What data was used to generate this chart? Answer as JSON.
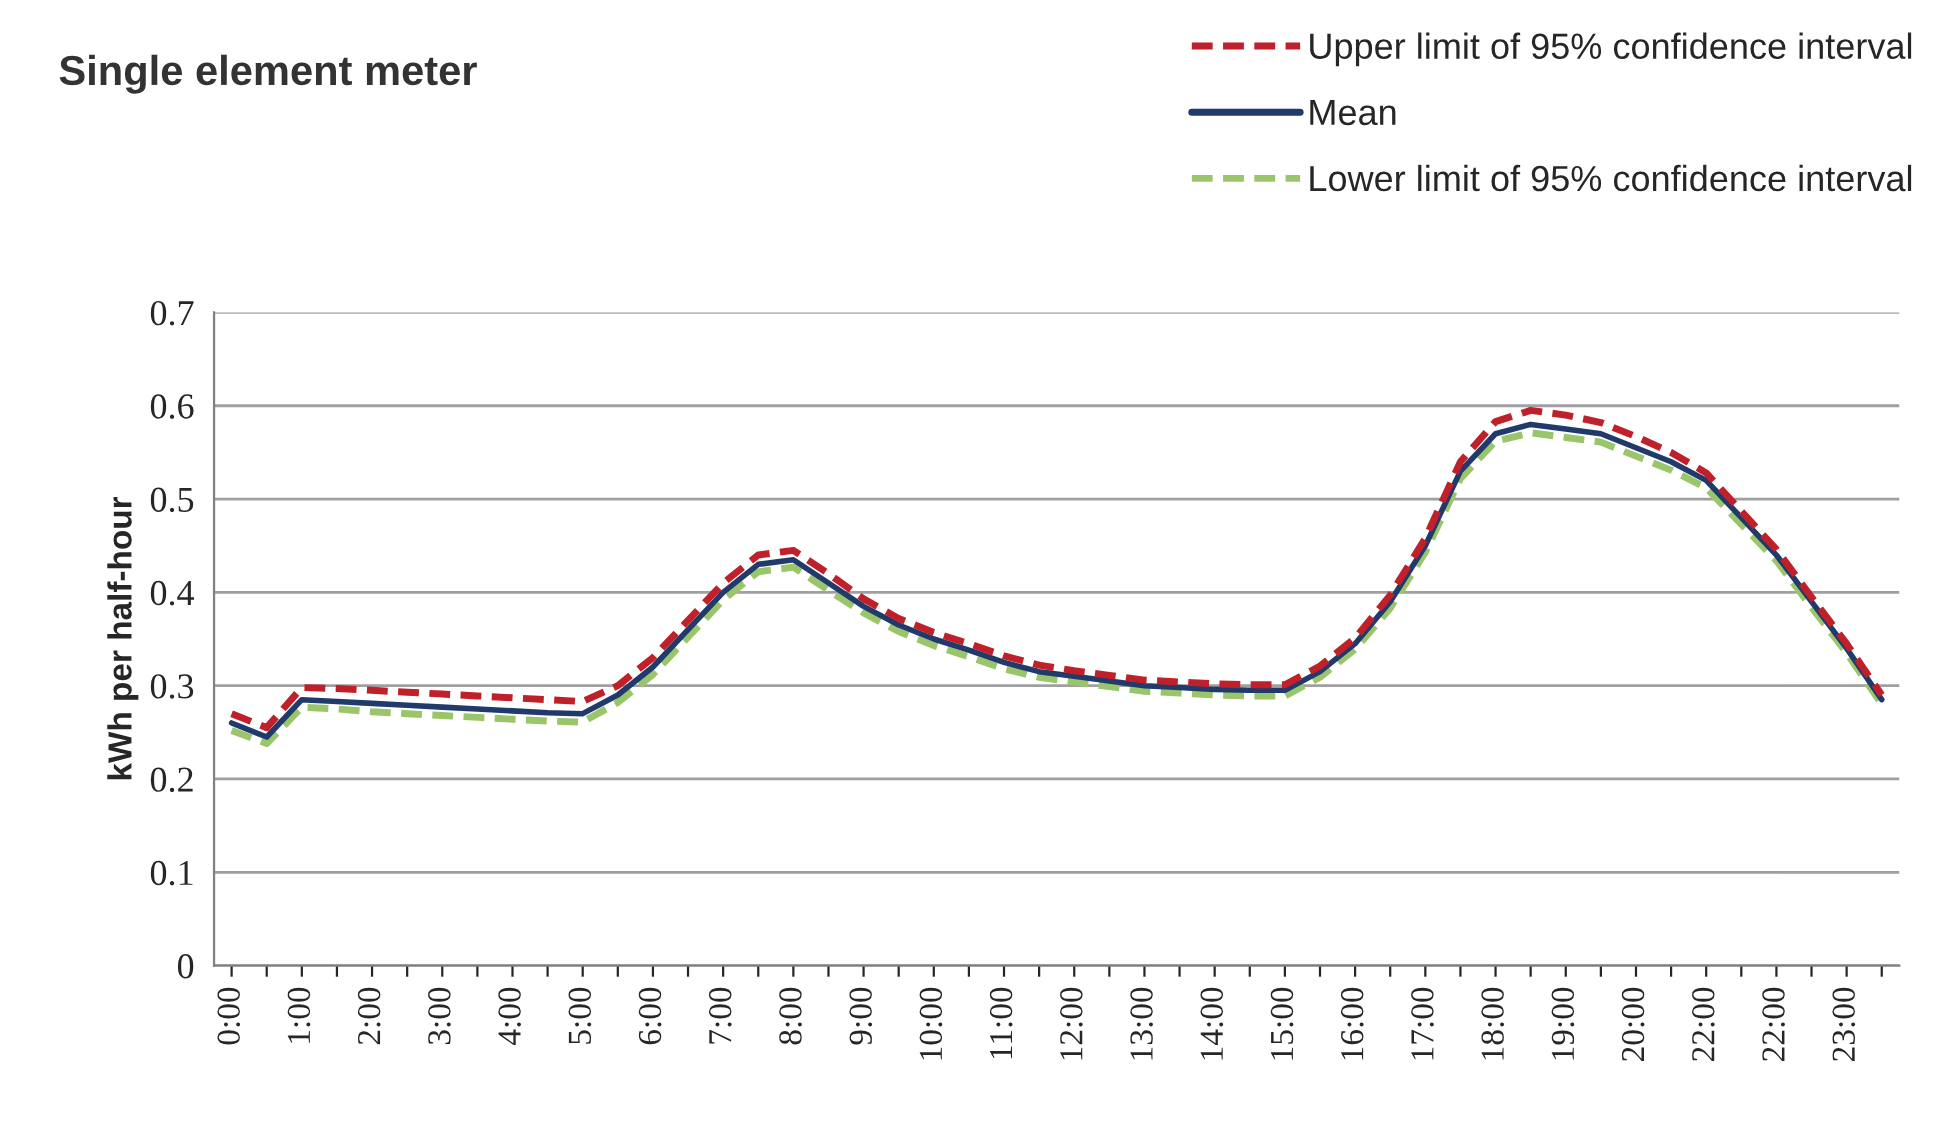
{
  "chart_data": {
    "type": "line",
    "title": "Single element meter",
    "ylabel": "kWh per half-hour",
    "categories": [
      "0:00",
      null,
      "1:00",
      null,
      "2:00",
      null,
      "3:00",
      null,
      "4:00",
      null,
      "5:00",
      null,
      "6:00",
      null,
      "7:00",
      null,
      "8:00",
      null,
      "9:00",
      null,
      "10:00",
      null,
      "11:00",
      null,
      "12:00",
      null,
      "13:00",
      null,
      "14:00",
      null,
      "15:00",
      null,
      "16:00",
      null,
      "17:00",
      null,
      "18:00",
      null,
      "19:00",
      null,
      "20:00",
      null,
      "22:00",
      null,
      "22:00",
      null,
      "23:00",
      null
    ],
    "series": [
      {
        "name": "Upper limit of 95% confidence interval",
        "color": "#c0202a",
        "line_style": "dashed",
        "values": [
          0.27,
          0.255,
          0.298,
          0.297,
          0.295,
          0.293,
          0.291,
          0.289,
          0.287,
          0.285,
          0.283,
          0.3,
          0.33,
          0.37,
          0.41,
          0.44,
          0.445,
          0.42,
          0.393,
          0.372,
          0.357,
          0.345,
          0.332,
          0.322,
          0.316,
          0.311,
          0.306,
          0.304,
          0.302,
          0.301,
          0.301,
          0.321,
          0.351,
          0.397,
          0.458,
          0.54,
          0.583,
          0.595,
          0.59,
          0.582,
          0.567,
          0.55,
          0.528,
          0.487,
          0.446,
          0.395,
          0.345,
          0.29
        ]
      },
      {
        "name": "Mean",
        "color": "#1f3a6b",
        "line_style": "solid",
        "values": [
          0.26,
          0.245,
          0.285,
          0.283,
          0.281,
          0.279,
          0.277,
          0.275,
          0.273,
          0.271,
          0.27,
          0.29,
          0.32,
          0.36,
          0.4,
          0.43,
          0.435,
          0.41,
          0.385,
          0.365,
          0.35,
          0.338,
          0.325,
          0.315,
          0.31,
          0.305,
          0.3,
          0.298,
          0.296,
          0.295,
          0.295,
          0.315,
          0.345,
          0.39,
          0.45,
          0.53,
          0.57,
          0.58,
          0.575,
          0.57,
          0.555,
          0.54,
          0.52,
          0.48,
          0.44,
          0.39,
          0.34,
          0.285
        ]
      },
      {
        "name": "Lower limit of 95% confidence interval",
        "color": "#9bc56a",
        "line_style": "dashed",
        "values": [
          0.252,
          0.238,
          0.277,
          0.275,
          0.272,
          0.27,
          0.268,
          0.266,
          0.264,
          0.262,
          0.261,
          0.282,
          0.312,
          0.352,
          0.392,
          0.422,
          0.427,
          0.402,
          0.378,
          0.358,
          0.343,
          0.331,
          0.318,
          0.309,
          0.304,
          0.299,
          0.294,
          0.292,
          0.29,
          0.289,
          0.289,
          0.309,
          0.339,
          0.383,
          0.443,
          0.522,
          0.562,
          0.571,
          0.566,
          0.561,
          0.546,
          0.531,
          0.512,
          0.473,
          0.434,
          0.384,
          0.335,
          0.28
        ]
      }
    ],
    "ylim": [
      0,
      0.7
    ],
    "yticks": [
      0,
      0.1,
      0.2,
      0.3,
      0.4,
      0.5,
      0.6,
      0.7
    ],
    "grid": "y",
    "legend": "top right",
    "marker": "none"
  }
}
